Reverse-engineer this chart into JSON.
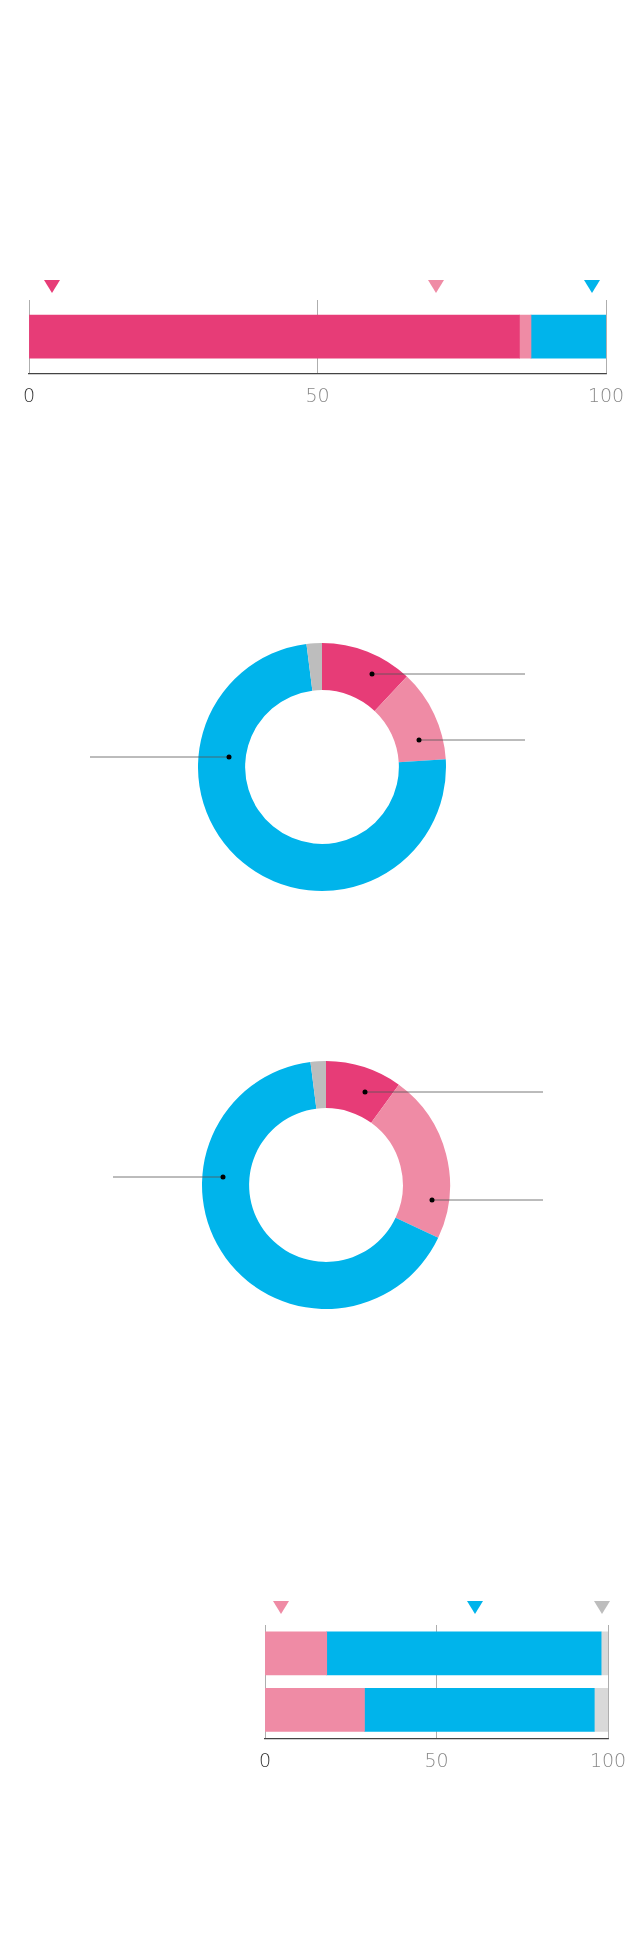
{
  "chart_data": [
    {
      "type": "bar",
      "orientation": "horizontal",
      "stacked": true,
      "categories": [
        null
      ],
      "series": [
        {
          "color": "#e73c77",
          "values": [
            85
          ]
        },
        {
          "color": "#ef8ba5",
          "values": [
            2
          ]
        },
        {
          "color": "#00b4eb",
          "values": [
            13
          ]
        }
      ],
      "xlim": [
        0,
        100
      ],
      "xticks": [
        0,
        50,
        100
      ],
      "grid": "x"
    },
    {
      "type": "donut",
      "categories": [
        null,
        null,
        null,
        null
      ],
      "values": [
        12,
        12,
        74,
        2
      ],
      "colors": [
        "#e73c77",
        "#ef8ba5",
        "#00b4eb",
        "#bdbdbd"
      ]
    },
    {
      "type": "donut",
      "categories": [
        null,
        null,
        null,
        null
      ],
      "values": [
        10,
        22,
        66,
        2
      ],
      "colors": [
        "#e73c77",
        "#ef8ba5",
        "#00b4eb",
        "#bdbdbd"
      ]
    },
    {
      "type": "bar",
      "orientation": "horizontal",
      "stacked": true,
      "categories": [
        null,
        null
      ],
      "series": [
        {
          "color": "#ef8ba5",
          "values": [
            18,
            29
          ]
        },
        {
          "color": "#00b4eb",
          "values": [
            80,
            67
          ]
        },
        {
          "color": "#d9d9d9",
          "values": [
            2,
            4
          ]
        }
      ],
      "xlim": [
        0,
        100
      ],
      "xticks": [
        0,
        50,
        100
      ],
      "grid": "x"
    }
  ]
}
